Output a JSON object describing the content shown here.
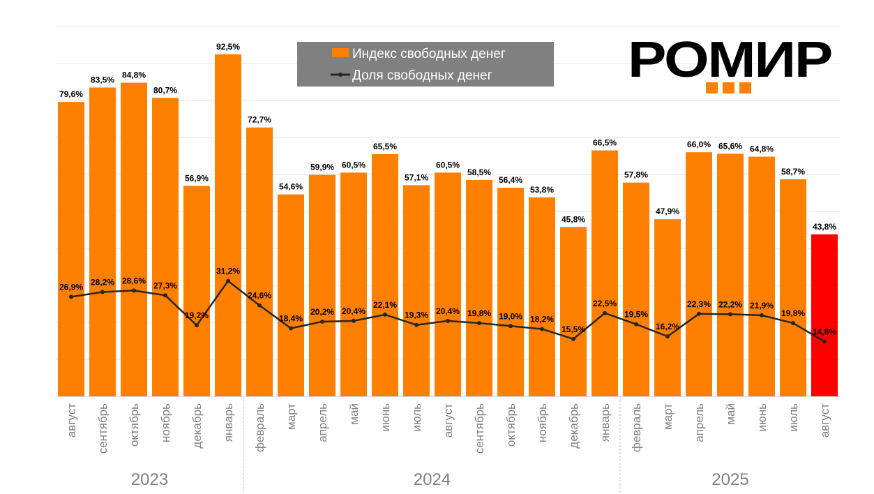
{
  "chart_data": {
    "type": "bar",
    "title": "",
    "xlabel": "",
    "ylabel": "",
    "ylim": [
      0,
      100
    ],
    "grid": true,
    "legend_position": "top-center",
    "categories": [
      "август",
      "сентябрь",
      "октябрь",
      "ноябрь",
      "декабрь",
      "январь",
      "февраль",
      "март",
      "апрель",
      "май",
      "июнь",
      "июль",
      "август",
      "сентябрь",
      "октябрь",
      "ноябрь",
      "декабрь",
      "январь",
      "февраль",
      "март",
      "апрель",
      "май",
      "июнь",
      "июль",
      "август"
    ],
    "years": [
      {
        "label": "2023",
        "start": 0,
        "end": 5
      },
      {
        "label": "2024",
        "start": 6,
        "end": 17
      },
      {
        "label": "2025",
        "start": 18,
        "end": 24
      }
    ],
    "series": [
      {
        "name": "Индекс свободных денег",
        "type": "bar",
        "color": "#FF8000",
        "highlight_color": "#FF0000",
        "highlight_index": 24,
        "values": [
          79.6,
          83.5,
          84.8,
          80.7,
          56.9,
          92.5,
          72.7,
          54.6,
          59.9,
          60.5,
          65.5,
          57.1,
          60.5,
          58.5,
          56.4,
          53.8,
          45.8,
          66.5,
          57.8,
          47.9,
          66.0,
          65.6,
          64.8,
          58.7,
          43.8
        ],
        "labels": [
          "79,6%",
          "83,5%",
          "84,8%",
          "80,7%",
          "56,9%",
          "92,5%",
          "72,7%",
          "54,6%",
          "59,9%",
          "60,5%",
          "65,5%",
          "57,1%",
          "60,5%",
          "58,5%",
          "56,4%",
          "53,8%",
          "45,8%",
          "66,5%",
          "57,8%",
          "47,9%",
          "66,0%",
          "65,6%",
          "64,8%",
          "58,7%",
          "43,8%"
        ]
      },
      {
        "name": "Доля свободных денег",
        "type": "line",
        "color": "#262626",
        "values": [
          26.9,
          28.2,
          28.6,
          27.3,
          19.2,
          31.2,
          24.6,
          18.4,
          20.2,
          20.4,
          22.1,
          19.3,
          20.4,
          19.8,
          19.0,
          18.2,
          15.5,
          22.5,
          19.5,
          16.2,
          22.3,
          22.2,
          21.9,
          19.8,
          14.8
        ],
        "labels": [
          "26,9%",
          "28,2%",
          "28,6%",
          "27,3%",
          "19,2%",
          "31,2%",
          "24,6%",
          "18,4%",
          "20,2%",
          "20,4%",
          "22,1%",
          "19,3%",
          "20,4%",
          "19,8%",
          "19,0%",
          "18,2%",
          "15,5%",
          "22,5%",
          "19,5%",
          "16,2%",
          "22,3%",
          "22,2%",
          "21,9%",
          "19,8%",
          "14,8%"
        ]
      }
    ]
  },
  "logo": {
    "text": "РОМИР"
  }
}
